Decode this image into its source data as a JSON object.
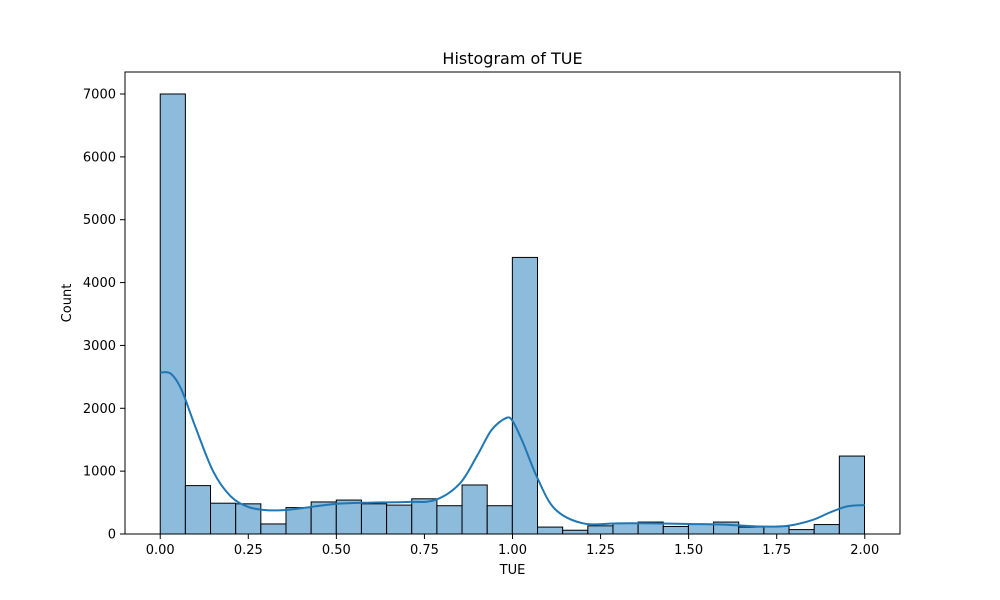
{
  "chart_data": {
    "type": "bar",
    "title": "Histogram of TUE",
    "xlabel": "TUE",
    "ylabel": "Count",
    "xlim": [
      -0.1,
      2.1
    ],
    "ylim": [
      0,
      7350
    ],
    "x_ticks": [
      0.0,
      0.25,
      0.5,
      0.75,
      1.0,
      1.25,
      1.5,
      1.75,
      2.0
    ],
    "x_tick_labels": [
      "0.00",
      "0.25",
      "0.50",
      "0.75",
      "1.00",
      "1.25",
      "1.50",
      "1.75",
      "2.00"
    ],
    "y_ticks": [
      0,
      1000,
      2000,
      3000,
      4000,
      5000,
      6000,
      7000
    ],
    "y_tick_labels": [
      "0",
      "1000",
      "2000",
      "3000",
      "4000",
      "5000",
      "6000",
      "7000"
    ],
    "bin_width": 0.0714,
    "bin_edges_start": 0.0,
    "values": [
      7000,
      770,
      490,
      480,
      160,
      420,
      510,
      540,
      480,
      460,
      560,
      450,
      780,
      450,
      4400,
      110,
      60,
      130,
      170,
      190,
      120,
      160,
      190,
      110,
      120,
      70,
      150,
      1240
    ],
    "kde": {
      "x": [
        0.0,
        0.03,
        0.06,
        0.1,
        0.15,
        0.2,
        0.25,
        0.3,
        0.35,
        0.4,
        0.5,
        0.6,
        0.7,
        0.78,
        0.85,
        0.9,
        0.94,
        0.98,
        1.0,
        1.03,
        1.07,
        1.12,
        1.2,
        1.3,
        1.4,
        1.5,
        1.6,
        1.7,
        1.78,
        1.85,
        1.9,
        1.95,
        2.0
      ],
      "y": [
        2570,
        2550,
        2300,
        1700,
        1000,
        600,
        430,
        380,
        380,
        410,
        480,
        500,
        510,
        540,
        800,
        1250,
        1650,
        1840,
        1800,
        1450,
        900,
        400,
        170,
        170,
        170,
        160,
        150,
        120,
        130,
        220,
        340,
        440,
        460
      ]
    },
    "grid": false,
    "legend": "none",
    "colors": {
      "bar_fill": "#8dbbdb",
      "bar_edge": "#000000",
      "kde_line": "#1f77b4"
    }
  }
}
